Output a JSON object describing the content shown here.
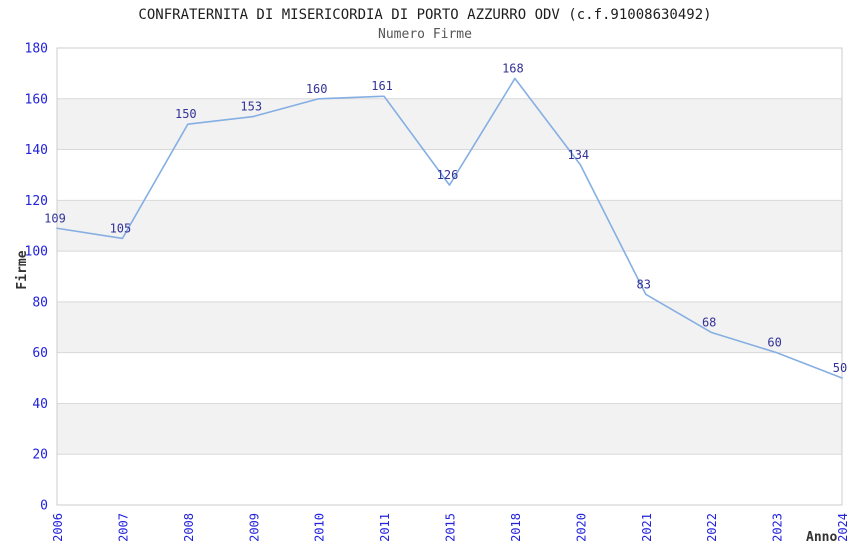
{
  "chart_data": {
    "type": "line",
    "title": "CONFRATERNITA DI MISERICORDIA DI PORTO AZZURRO ODV (c.f.91008630492)",
    "subtitle": "Numero Firme",
    "xlabel": "Anno",
    "ylabel": "Firme",
    "categories": [
      "2006",
      "2007",
      "2008",
      "2009",
      "2010",
      "2011",
      "2015",
      "2018",
      "2020",
      "2021",
      "2022",
      "2023",
      "2024"
    ],
    "values": [
      109,
      105,
      150,
      153,
      160,
      161,
      126,
      168,
      134,
      83,
      68,
      60,
      50
    ],
    "ylim": [
      0,
      180
    ],
    "ytick_step": 20,
    "yticks": [
      0,
      20,
      40,
      60,
      80,
      100,
      120,
      140,
      160,
      180
    ],
    "grid": true,
    "legend": "none",
    "band_style": "alternating-horizontal",
    "colors": {
      "line": "#85afe3",
      "tick_label": "#2222dd",
      "data_label": "#333399",
      "band": "#f2f2f2",
      "gridline": "#d9d9d9",
      "frame": "#cccccc",
      "title": "#1d1d1d",
      "subtitle": "#555555",
      "axis_label": "#333333",
      "background": "#ffffff"
    }
  }
}
